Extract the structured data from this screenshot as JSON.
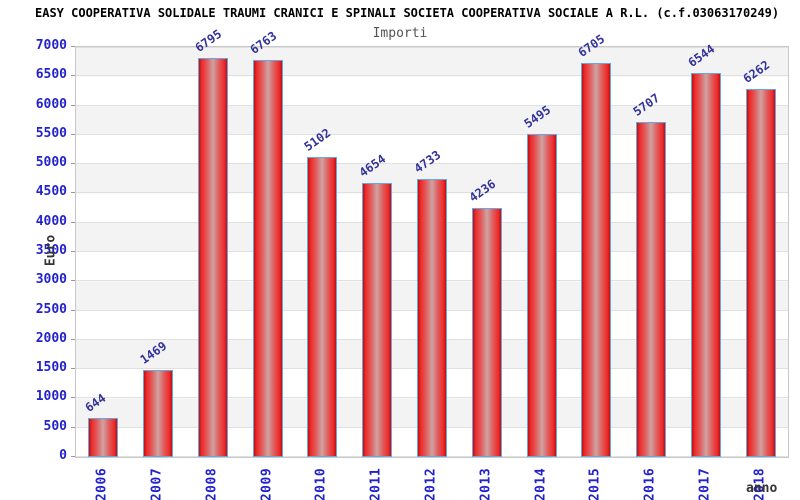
{
  "header": {
    "title": "EASY COOPERATIVA SOLIDALE TRAUMI CRANICI E SPINALI SOCIETA COOPERATIVA SOCIALE A R.L. (c.f.03063170249)",
    "subtitle": "Importi"
  },
  "chart_data": {
    "type": "bar",
    "title": "Importi",
    "xlabel": "anno",
    "ylabel": "Euro",
    "categories": [
      "2006",
      "2007",
      "2008",
      "2009",
      "2010",
      "2011",
      "2012",
      "2013",
      "2014",
      "2015",
      "2016",
      "2017",
      "2018"
    ],
    "values": [
      644,
      1469,
      6795,
      6763,
      5102,
      4654,
      4733,
      4236,
      5495,
      6705,
      5707,
      6544,
      6262
    ],
    "ylim": [
      0,
      7000
    ],
    "ytick_step": 500,
    "grid": "horizontal",
    "legend": "none",
    "colors": {
      "bar_edge": "#c01010",
      "bar_bright": "#ee2b2b",
      "bar_center": "#cfa3a3",
      "bar_border": "#63a7e3",
      "axis_tick_label": "#2222cc",
      "value_label": "#33339a",
      "band": "#f3f3f3",
      "gridline": "#e0e0e0",
      "title": "#000000",
      "subtitle": "#555555"
    }
  }
}
